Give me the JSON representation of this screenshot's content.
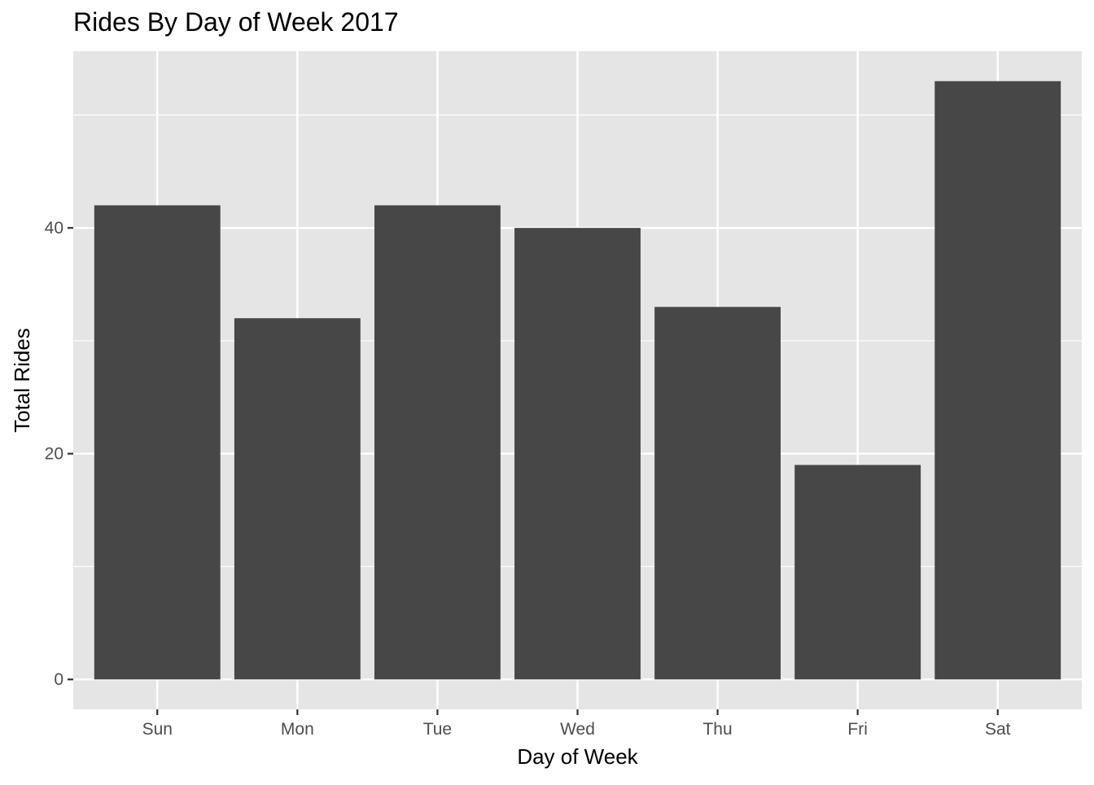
{
  "chart_data": {
    "type": "bar",
    "title": "Rides By Day of Week 2017",
    "xlabel": "Day of Week",
    "ylabel": "Total Rides",
    "categories": [
      "Sun",
      "Mon",
      "Tue",
      "Wed",
      "Thu",
      "Fri",
      "Sat"
    ],
    "values": [
      42,
      32,
      42,
      40,
      33,
      19,
      53
    ],
    "ylim": [
      -2.65,
      55.65
    ],
    "yticks": [
      0,
      20,
      40
    ],
    "yticks_minor": [
      10,
      30,
      50
    ],
    "grid": true,
    "legend": "none",
    "colors": {
      "bar": "#474747",
      "panel": "#e5e5e5",
      "grid": "#ffffff",
      "axis_text": "#4d4d4d",
      "title": "#000000"
    }
  }
}
